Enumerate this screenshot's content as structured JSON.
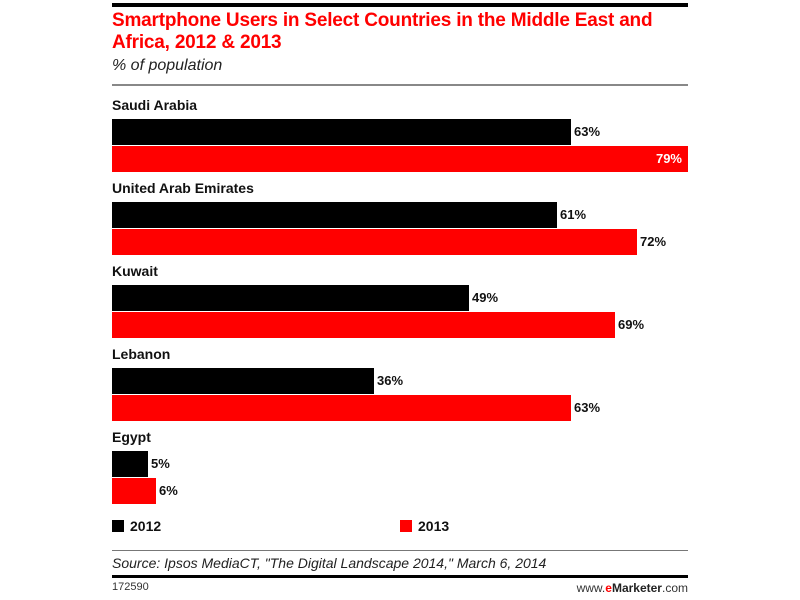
{
  "header": {
    "title": "Smartphone Users in Select Countries in the Middle East and Africa, 2012 & 2013",
    "subtitle": "% of population"
  },
  "legend": {
    "items": [
      {
        "label": "2012",
        "color": "#000000"
      },
      {
        "label": "2013",
        "color": "#ff0000"
      }
    ]
  },
  "footer": {
    "source": "Source: Ipsos MediaCT, \"The Digital Landscape 2014,\" March 6, 2014",
    "chart_id": "172590",
    "brand_prefix": "www.",
    "brand_e": "e",
    "brand_name": "Marketer",
    "brand_suffix": ".com"
  },
  "colors": {
    "accent": "#ff0000",
    "series_2012": "#000000",
    "series_2013": "#ff0000"
  },
  "chart_data": {
    "type": "bar",
    "orientation": "horizontal",
    "title": "Smartphone Users in Select Countries in the Middle East and Africa, 2012 & 2013",
    "subtitle": "% of population",
    "xlabel": "",
    "ylabel": "% of population",
    "categories": [
      "Saudi Arabia",
      "United Arab Emirates",
      "Kuwait",
      "Lebanon",
      "Egypt"
    ],
    "series": [
      {
        "name": "2012",
        "color": "#000000",
        "values": [
          63,
          61,
          49,
          36,
          5
        ],
        "labels": [
          "63%",
          "61%",
          "49%",
          "36%",
          "5%"
        ]
      },
      {
        "name": "2013",
        "color": "#ff0000",
        "values": [
          79,
          72,
          69,
          63,
          6
        ],
        "labels": [
          "79%",
          "72%",
          "69%",
          "63%",
          "6%"
        ]
      }
    ],
    "xlim": [
      0,
      79
    ],
    "grid": false,
    "legend_position": "bottom",
    "source": "Source: Ipsos MediaCT, \"The Digital Landscape 2014,\" March 6, 2014"
  }
}
